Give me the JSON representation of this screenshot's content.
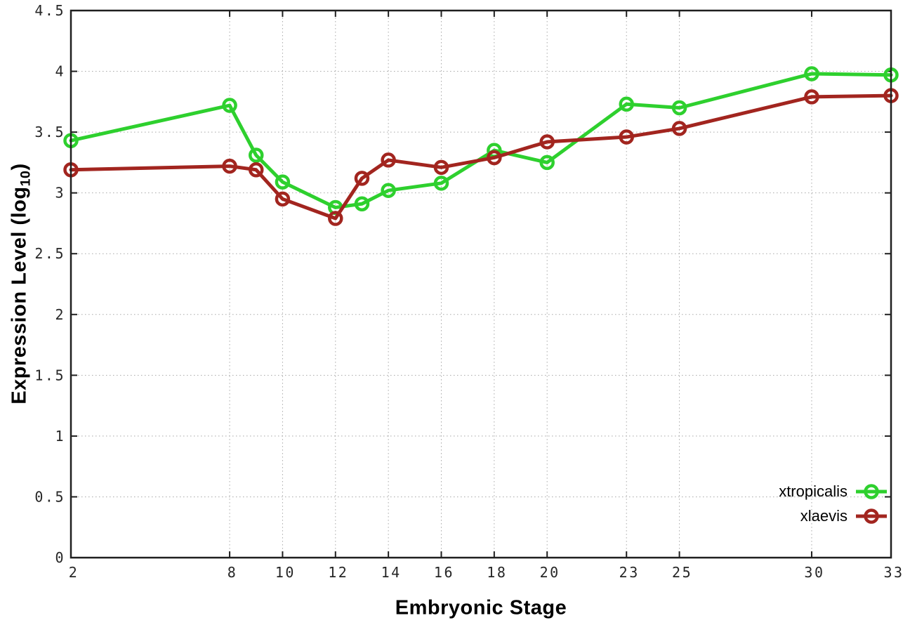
{
  "chart_data": {
    "type": "line",
    "title": "",
    "xlabel": "Embryonic Stage",
    "ylabel": "Expression Level (log10)",
    "ylabel_parts": {
      "main": "Expression Level (log",
      "sub": "10",
      "close": ")"
    },
    "x": [
      2,
      8,
      9,
      10,
      12,
      13,
      14,
      16,
      18,
      20,
      23,
      25,
      30,
      33
    ],
    "series": [
      {
        "name": "xtropicalis",
        "color": "#2ed02e",
        "values": [
          3.43,
          3.72,
          3.31,
          3.09,
          2.88,
          2.91,
          3.02,
          3.08,
          3.35,
          3.25,
          3.73,
          3.7,
          3.98,
          3.97
        ]
      },
      {
        "name": "xlaevis",
        "color": "#a2251f",
        "values": [
          3.19,
          3.22,
          3.19,
          2.95,
          2.79,
          3.12,
          3.27,
          3.21,
          3.29,
          3.42,
          3.46,
          3.53,
          3.79,
          3.8
        ]
      }
    ],
    "xticks": [
      2,
      8,
      10,
      12,
      14,
      16,
      18,
      20,
      23,
      25,
      30,
      33
    ],
    "yticks": [
      0,
      0.5,
      1,
      1.5,
      2,
      2.5,
      3,
      3.5,
      4,
      4.5
    ],
    "xlim": [
      2,
      33
    ],
    "ylim": [
      0,
      4.5
    ],
    "grid": true,
    "legend_position": "bottom-right",
    "marker": "open-circle"
  },
  "colors": {
    "background": "#ffffff",
    "grid": "#a8a8a8",
    "border": "#1f1f1f",
    "tick": "#1f1f1f",
    "tick_label": "#262626"
  }
}
